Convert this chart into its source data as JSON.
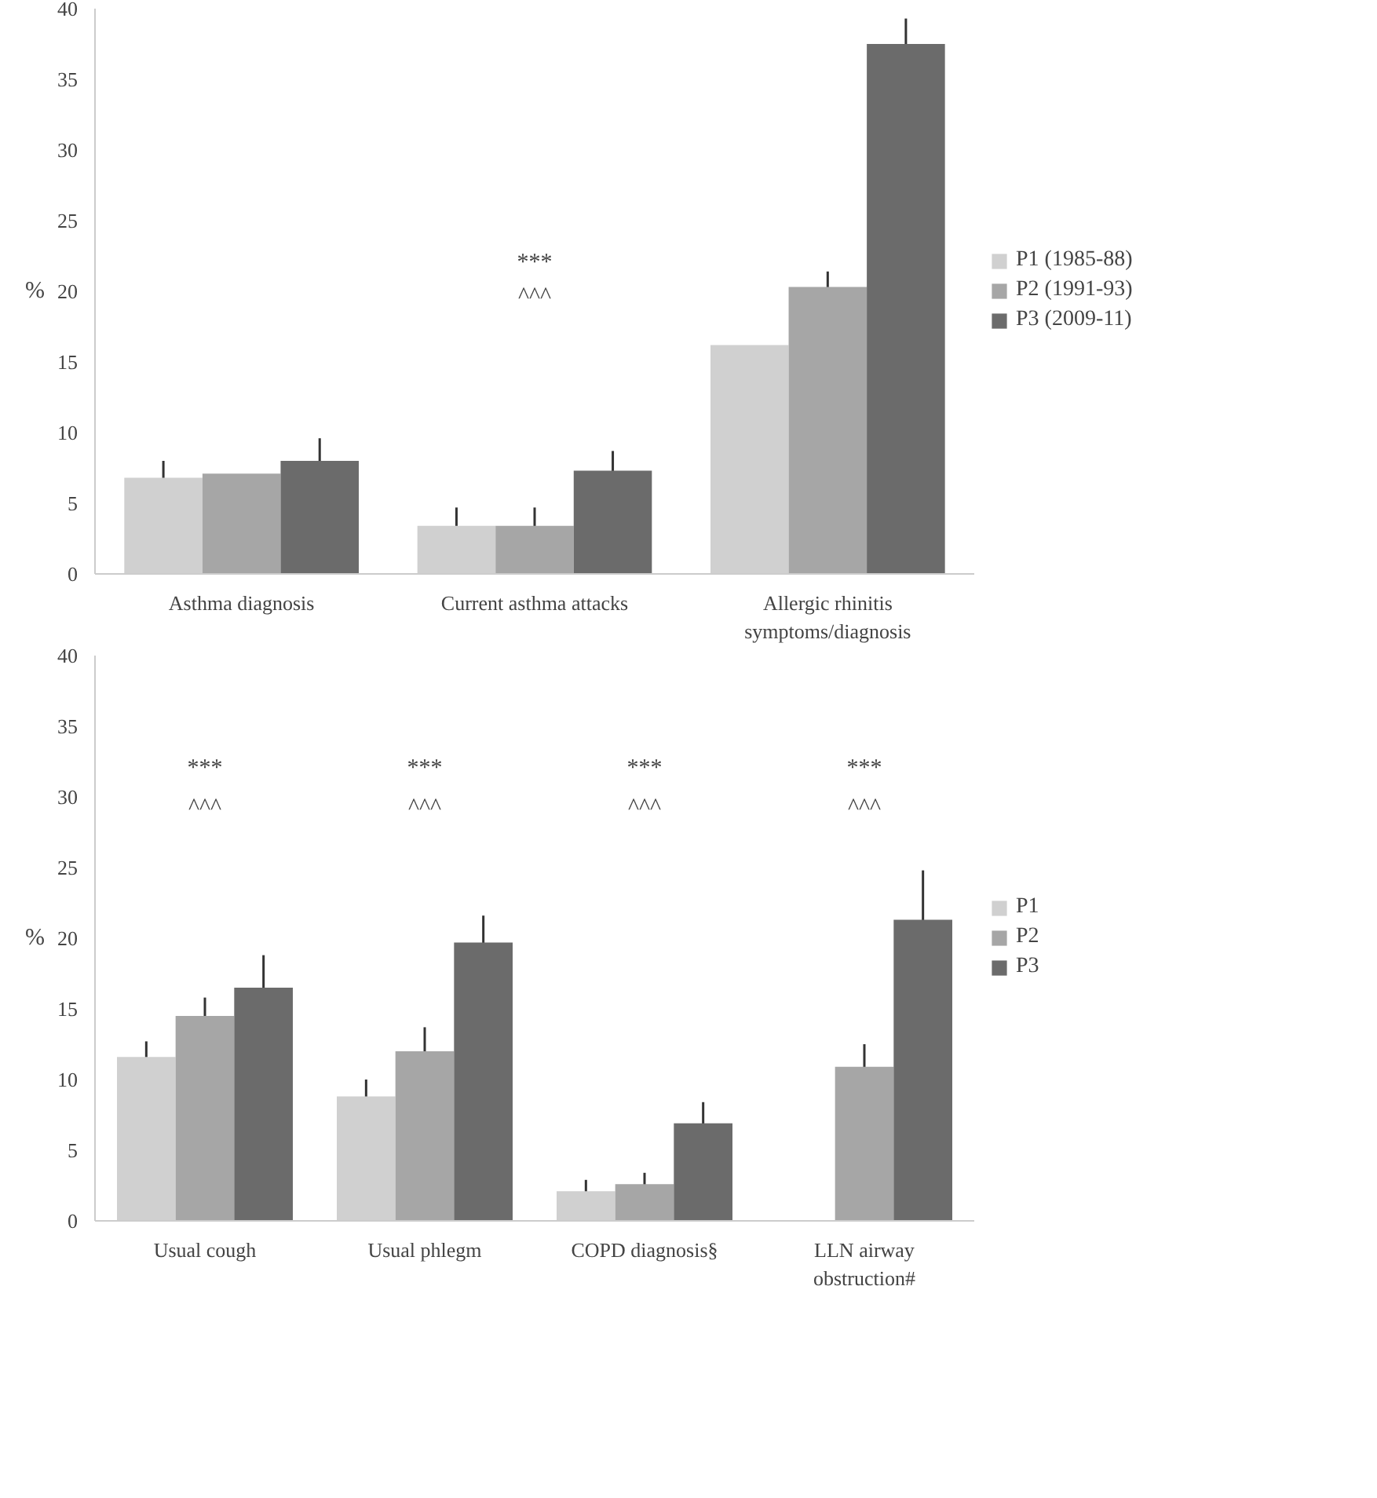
{
  "chart_data": [
    {
      "type": "bar",
      "ylabel": "%",
      "categories": [
        "Asthma diagnosis",
        "Current asthma attacks",
        "Allergic rhinitis\nsymptoms/diagnosis"
      ],
      "ylim": [
        0,
        40
      ],
      "yticks": [
        0,
        5,
        10,
        15,
        20,
        25,
        30,
        35,
        40
      ],
      "grid": false,
      "legend": "right",
      "series": [
        {
          "name": "P1 (1985-88)",
          "color": "#d0d0d0",
          "values": [
            6.8,
            3.4,
            16.2
          ],
          "errors": [
            1.2,
            1.3,
            null
          ]
        },
        {
          "name": "P2 (1991-93)",
          "color": "#a6a6a6",
          "values": [
            7.1,
            3.4,
            20.3
          ],
          "errors": [
            null,
            1.3,
            1.1
          ]
        },
        {
          "name": "P3 (2009-11)",
          "color": "#6b6b6b",
          "values": [
            8.0,
            7.3,
            37.5
          ],
          "errors": [
            1.6,
            1.4,
            1.8
          ]
        }
      ],
      "annotations": [
        "***",
        "^^^"
      ]
    },
    {
      "type": "bar",
      "ylabel": "%",
      "categories": [
        "Usual cough",
        "Usual phlegm",
        "COPD diagnosis§",
        "LLN airway\nobstruction#"
      ],
      "ylim": [
        0,
        40
      ],
      "yticks": [
        0,
        5,
        10,
        15,
        20,
        25,
        30,
        35,
        40
      ],
      "grid": false,
      "legend": "right",
      "series": [
        {
          "name": "P1",
          "color": "#d0d0d0",
          "values": [
            11.6,
            8.8,
            2.1,
            null
          ],
          "errors": [
            1.1,
            1.2,
            0.8,
            null
          ]
        },
        {
          "name": "P2",
          "color": "#a6a6a6",
          "values": [
            14.5,
            12.0,
            2.6,
            10.9
          ],
          "errors": [
            1.3,
            1.7,
            0.8,
            1.6
          ]
        },
        {
          "name": "P3",
          "color": "#6b6b6b",
          "values": [
            16.5,
            19.7,
            6.9,
            21.3
          ],
          "errors": [
            2.3,
            1.9,
            1.5,
            3.5
          ]
        }
      ],
      "annotations": [
        "***",
        "^^^",
        "***",
        "^^^",
        "***",
        "^^^",
        "***",
        "^^^"
      ]
    }
  ]
}
